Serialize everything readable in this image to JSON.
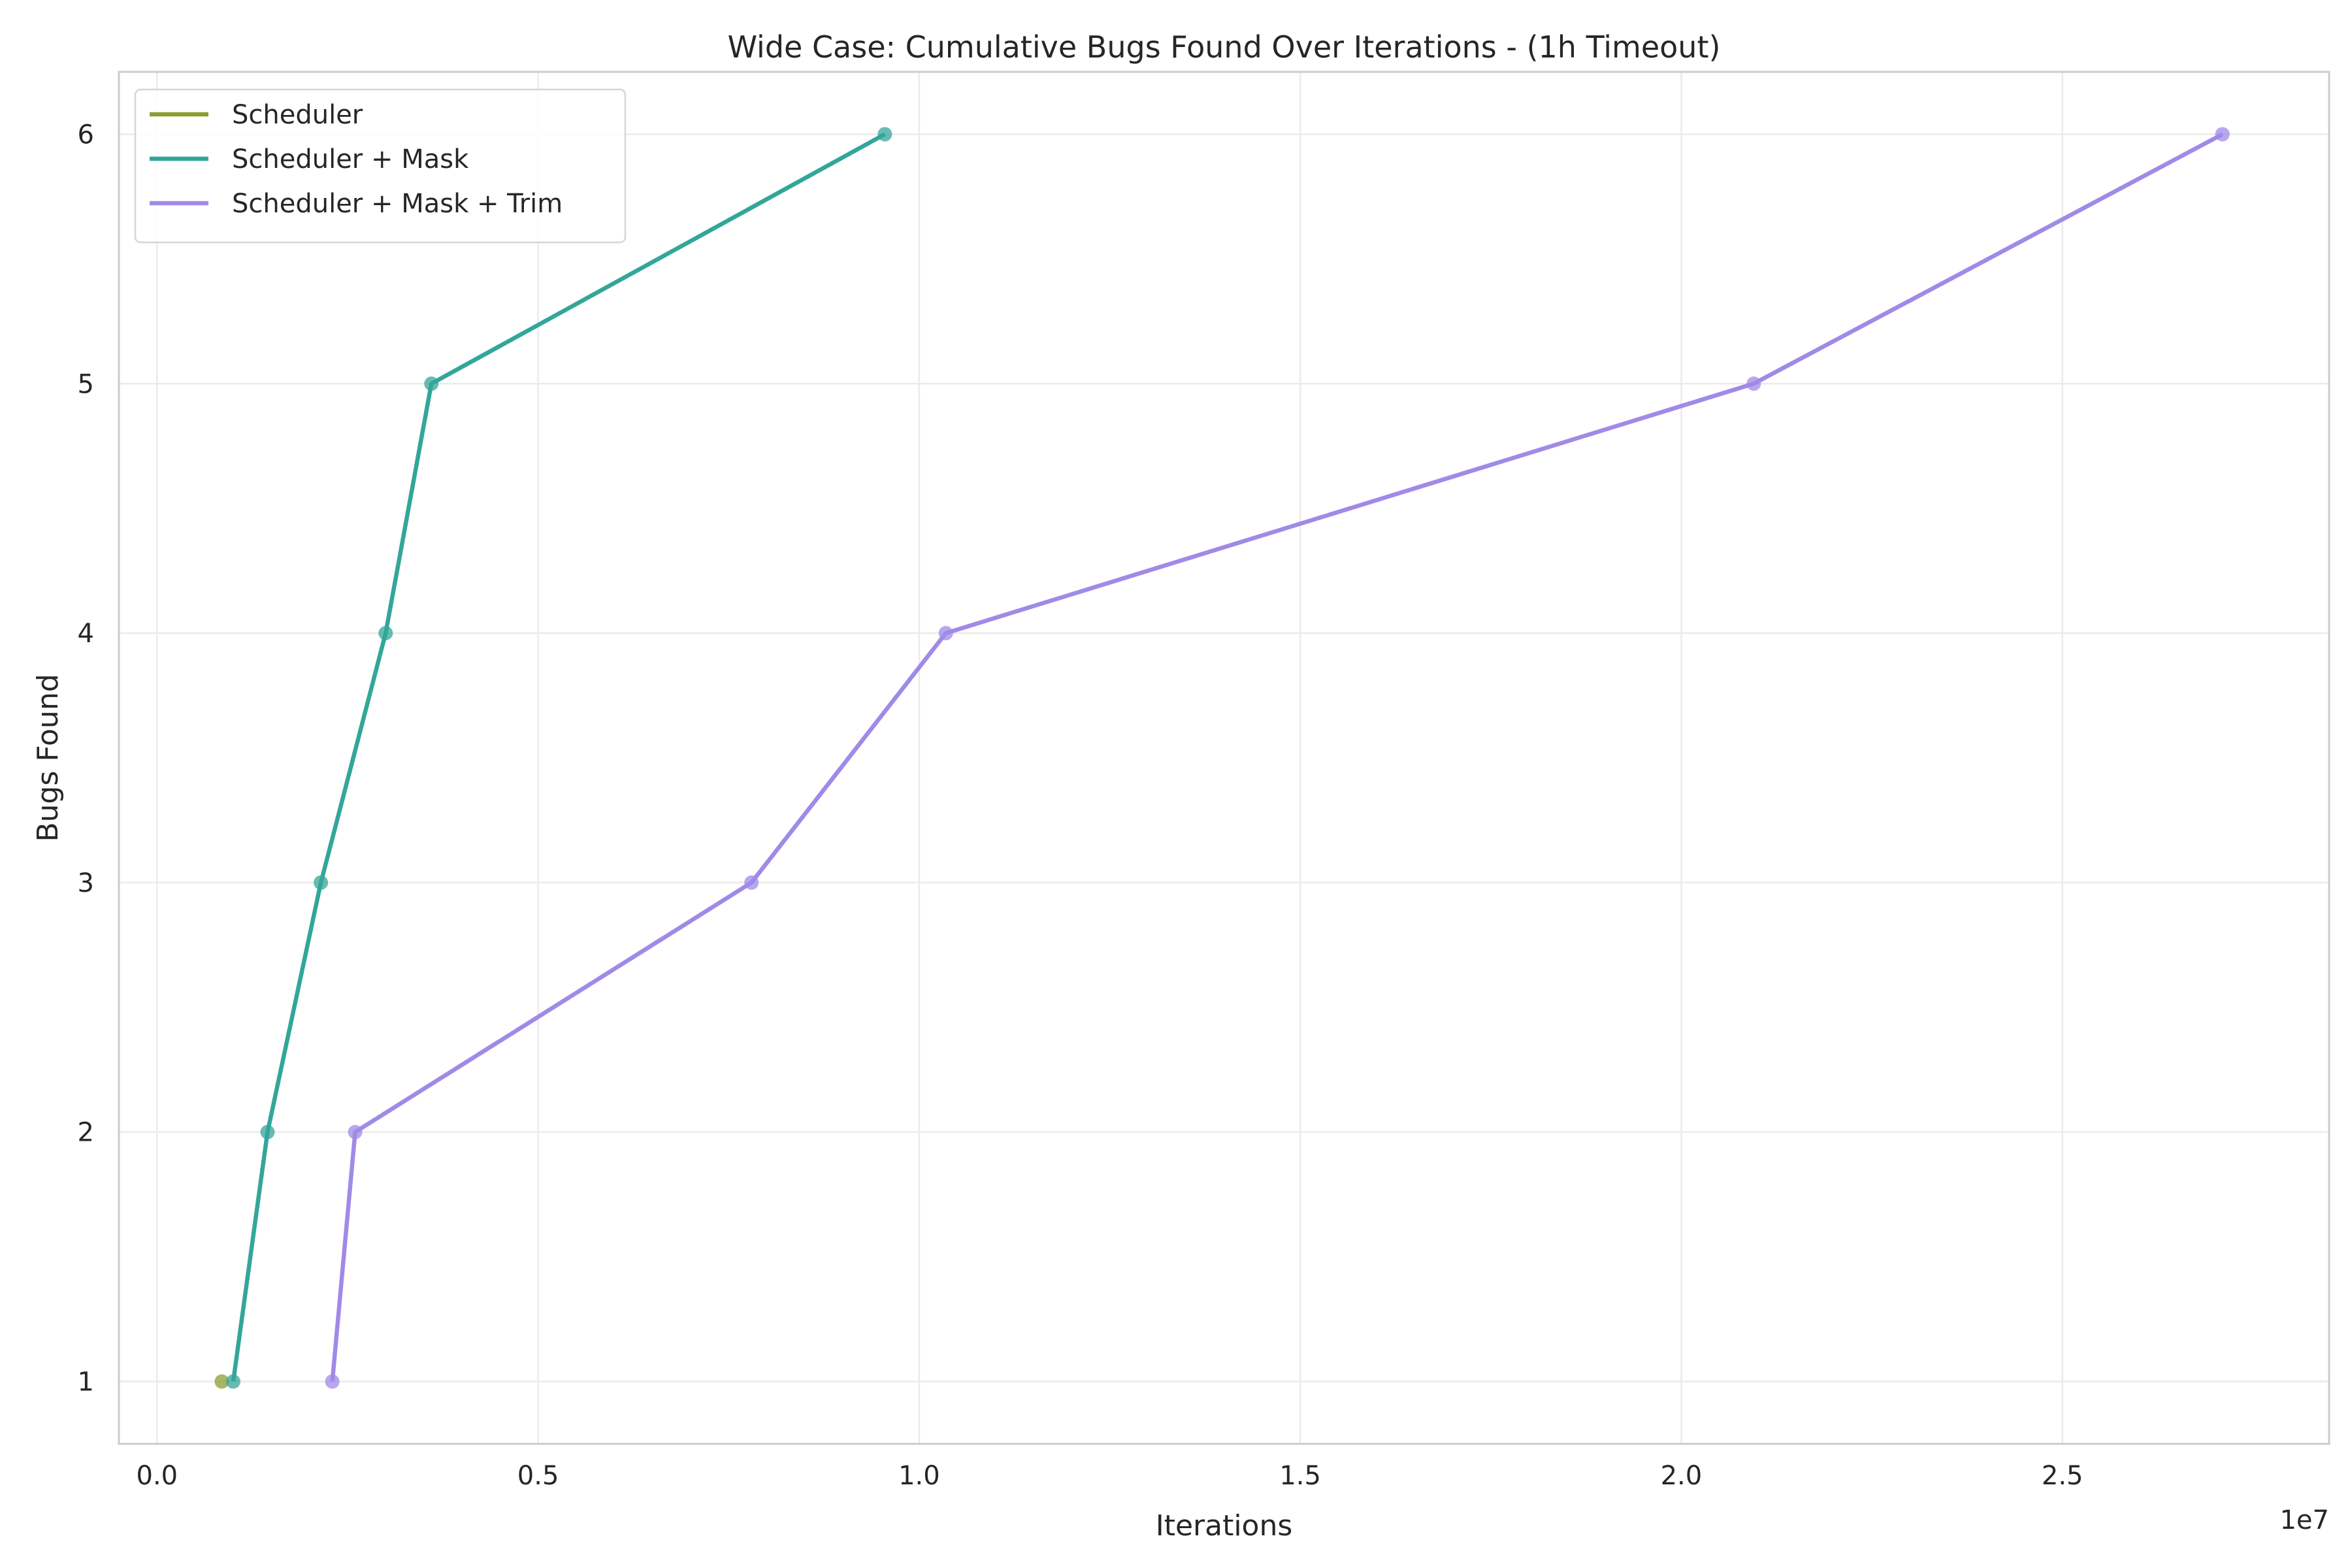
{
  "chart_data": {
    "type": "line",
    "title": "Wide Case: Cumulative Bugs Found Over Iterations - (1h Timeout)",
    "xlabel": "Iterations",
    "ylabel": "Bugs Found",
    "x_offset_label": "1e7",
    "xlim": [
      -500000,
      28500000
    ],
    "ylim": [
      0.75,
      6.25
    ],
    "xticks": [
      0,
      5000000,
      10000000,
      15000000,
      20000000,
      25000000
    ],
    "xtick_labels": [
      "0.0",
      "0.5",
      "1.0",
      "1.5",
      "2.0",
      "2.5"
    ],
    "yticks": [
      1,
      2,
      3,
      4,
      5,
      6
    ],
    "ytick_labels": [
      "1",
      "2",
      "3",
      "4",
      "5",
      "6"
    ],
    "grid": true,
    "legend_position": "top-left",
    "series": [
      {
        "name": "Scheduler",
        "color": "#8c9d2f",
        "x": [
          850000
        ],
        "y": [
          1
        ]
      },
      {
        "name": "Scheduler + Mask",
        "color": "#33a69a",
        "x": [
          1000000,
          1450000,
          2150000,
          3000000,
          3600000,
          9550000
        ],
        "y": [
          1,
          2,
          3,
          4,
          5,
          6
        ]
      },
      {
        "name": "Scheduler + Mask + Trim",
        "color": "#a08ae8",
        "x": [
          2300000,
          2600000,
          7800000,
          10350000,
          20950000,
          27100000
        ],
        "y": [
          1,
          2,
          3,
          4,
          5,
          6
        ]
      }
    ]
  }
}
